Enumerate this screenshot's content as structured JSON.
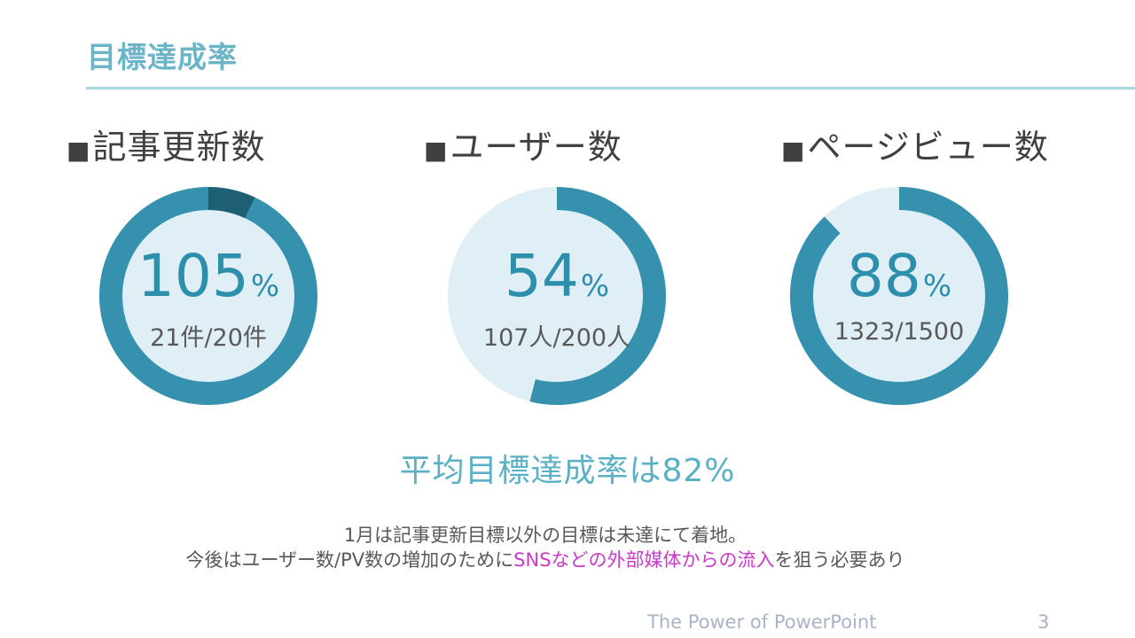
{
  "slide": {
    "title": "目標達成率",
    "page_number": "3",
    "footer": "The Power of PowerPoint"
  },
  "kpis": [
    {
      "label": "記事更新数",
      "value": "105",
      "unit": "%",
      "detail": "21件/20件",
      "achievement": 1.05
    },
    {
      "label": "ユーザー数",
      "value": "54",
      "unit": "%",
      "detail": "107人/200人",
      "achievement": 0.54
    },
    {
      "label": "ページビュー数",
      "value": "88",
      "unit": "%",
      "detail": "1323/1500",
      "achievement": 0.88
    }
  ],
  "summary": "平均目標達成率は82%",
  "note": {
    "line1": "1月は記事更新目標以外の目標は未達にて着地。",
    "line2_before": "今後はユーザー数/PV数の増加のために",
    "line2_highlight": "SNSなどの外部媒体からの流入",
    "line2_after": "を狙う必要あり"
  },
  "colors": {
    "ring": "#3591ae",
    "track": "#dfeff5",
    "overflow": "#1e5f73",
    "highlight": "#c93ac7"
  },
  "bullet": "■"
}
